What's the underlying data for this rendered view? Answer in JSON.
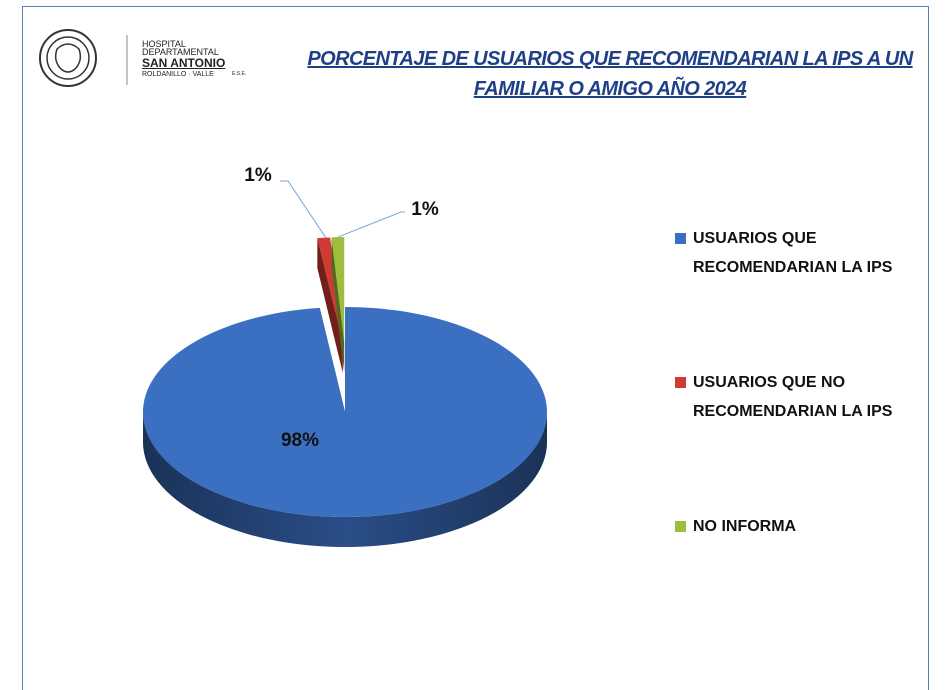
{
  "logo": {
    "line1": "HOSPITAL",
    "line2": "DEPARTAMENTAL",
    "line3": "SAN ANTONIO",
    "line4": "ROLDANILLO · VALLE",
    "line5": "E.S.E."
  },
  "chart_data": {
    "type": "pie",
    "title": "PORCENTAJE DE USUARIOS QUE RECOMENDARIAN LA IPS A UN FAMILIAR O AMIGO AÑO 2024",
    "categories": [
      "USUARIOS QUE RECOMENDARIAN LA IPS",
      "USUARIOS QUE NO RECOMENDARIAN LA IPS",
      "NO INFORMA"
    ],
    "values": [
      98,
      1,
      1
    ],
    "value_labels": [
      "98%",
      "1%",
      "1%"
    ],
    "colors": [
      "#3b6fc1",
      "#cf3a32",
      "#9cbe3c"
    ]
  }
}
